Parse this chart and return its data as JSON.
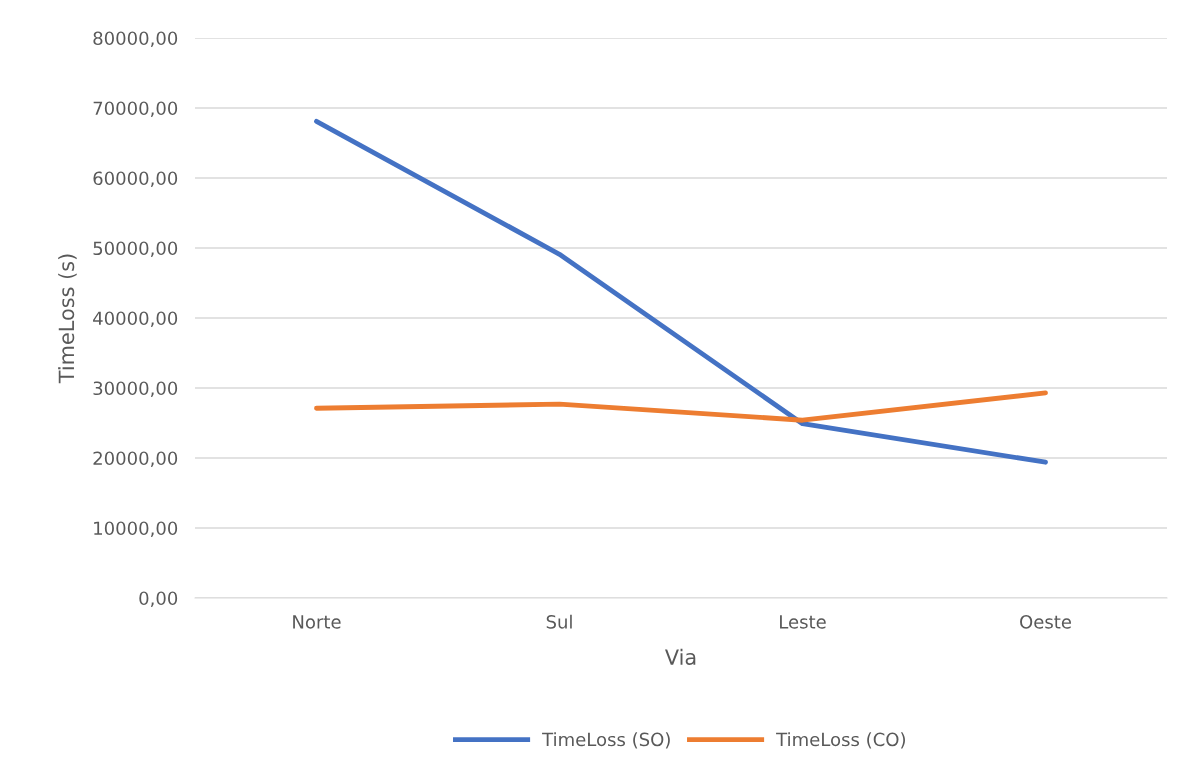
{
  "chart_data": {
    "type": "line",
    "xlabel": "Via",
    "ylabel": "TimeLoss (s)",
    "categories": [
      "Norte",
      "Sul",
      "Leste",
      "Oeste"
    ],
    "series": [
      {
        "name": "TimeLoss (SO)",
        "color": "#4472c4",
        "values": [
          68100,
          49100,
          24900,
          19400
        ]
      },
      {
        "name": "TimeLoss (CO)",
        "color": "#ed7d31",
        "values": [
          27100,
          27700,
          25400,
          29300
        ]
      }
    ],
    "ylim": [
      0,
      80000
    ],
    "yticks": [
      {
        "value": 0,
        "label": "0,00"
      },
      {
        "value": 10000,
        "label": "10000,00"
      },
      {
        "value": 20000,
        "label": "20000,00"
      },
      {
        "value": 30000,
        "label": "30000,00"
      },
      {
        "value": 40000,
        "label": "40000,00"
      },
      {
        "value": 50000,
        "label": "50000,00"
      },
      {
        "value": 60000,
        "label": "60000,00"
      },
      {
        "value": 70000,
        "label": "70000,00"
      },
      {
        "value": 80000,
        "label": "80000,00"
      }
    ],
    "grid": "y",
    "legend": "bottom",
    "marker": "none",
    "line_style": "solid"
  }
}
